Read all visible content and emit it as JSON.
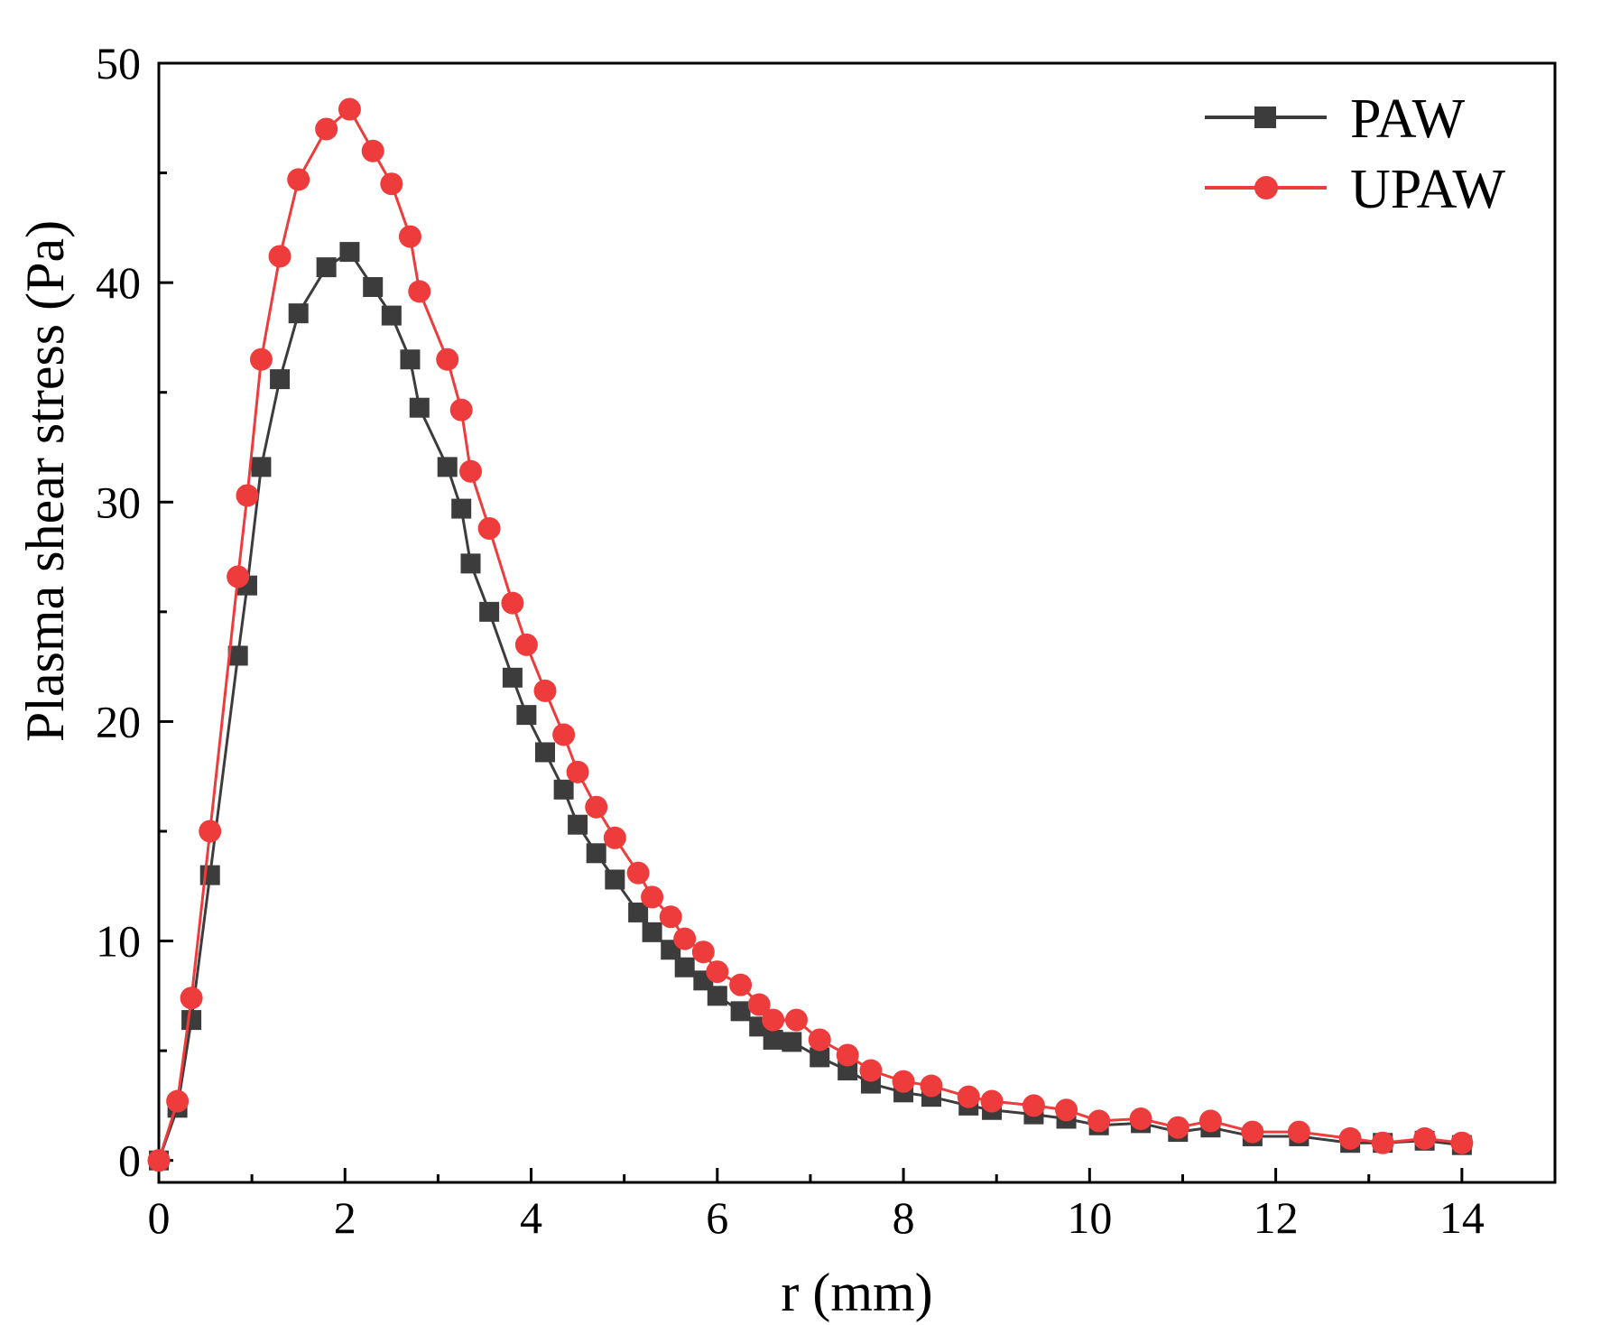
{
  "chart_data": {
    "type": "line",
    "title": "",
    "xlabel": "r (mm)",
    "ylabel": "Plasma shear stress (Pa)",
    "xlim": [
      0,
      15
    ],
    "ylim": [
      -1,
      50
    ],
    "xticks": [
      0,
      2,
      4,
      6,
      8,
      10,
      12,
      14
    ],
    "yticks": [
      0,
      10,
      20,
      30,
      40,
      50
    ],
    "xtick_labels": [
      "0",
      "2",
      "4",
      "6",
      "8",
      "10",
      "12",
      "14"
    ],
    "ytick_labels": [
      "0",
      "10",
      "20",
      "30",
      "40",
      "50"
    ],
    "legend_position": "top-right",
    "series": [
      {
        "name": "PAW",
        "color": "#3c3c3c",
        "marker": "square",
        "x": [
          0,
          0.2,
          0.35,
          0.55,
          0.85,
          0.95,
          1.1,
          1.3,
          1.5,
          1.8,
          2.05,
          2.3,
          2.5,
          2.7,
          2.8,
          3.1,
          3.25,
          3.35,
          3.55,
          3.8,
          3.95,
          4.15,
          4.35,
          4.5,
          4.7,
          4.9,
          5.15,
          5.3,
          5.5,
          5.65,
          5.85,
          6.0,
          6.25,
          6.45,
          6.6,
          6.8,
          7.1,
          7.4,
          7.65,
          8.0,
          8.3,
          8.7,
          8.95,
          9.4,
          9.75,
          10.1,
          10.55,
          10.95,
          11.3,
          11.75,
          12.25,
          12.8,
          13.15,
          13.6,
          14.0
        ],
        "y": [
          0,
          2.4,
          6.4,
          13,
          23,
          26.2,
          31.6,
          35.6,
          38.6,
          40.7,
          41.4,
          39.8,
          38.5,
          36.5,
          34.3,
          31.6,
          29.7,
          27.2,
          25,
          22,
          20.3,
          18.6,
          16.9,
          15.3,
          14,
          12.8,
          11.3,
          10.4,
          9.6,
          8.8,
          8.2,
          7.5,
          6.8,
          6.1,
          5.5,
          5.4,
          4.7,
          4.1,
          3.5,
          3.1,
          2.9,
          2.5,
          2.3,
          2.1,
          1.9,
          1.6,
          1.7,
          1.3,
          1.5,
          1.1,
          1.1,
          0.8,
          0.8,
          0.9,
          0.7
        ]
      },
      {
        "name": "UPAW",
        "color": "#ee3b3b",
        "marker": "circle",
        "x": [
          0,
          0.2,
          0.35,
          0.55,
          0.85,
          0.95,
          1.1,
          1.3,
          1.5,
          1.8,
          2.05,
          2.3,
          2.5,
          2.7,
          2.8,
          3.1,
          3.25,
          3.35,
          3.55,
          3.8,
          3.95,
          4.15,
          4.35,
          4.5,
          4.7,
          4.9,
          5.15,
          5.3,
          5.5,
          5.65,
          5.85,
          6.0,
          6.25,
          6.45,
          6.6,
          6.85,
          7.1,
          7.4,
          7.65,
          8.0,
          8.3,
          8.7,
          8.95,
          9.4,
          9.75,
          10.1,
          10.55,
          10.95,
          11.3,
          11.75,
          12.25,
          12.8,
          13.15,
          13.6,
          14.0
        ],
        "y": [
          0,
          2.7,
          7.4,
          15,
          26.6,
          30.3,
          36.5,
          41.2,
          44.7,
          47,
          47.9,
          46,
          44.5,
          42.1,
          39.6,
          36.5,
          34.2,
          31.4,
          28.8,
          25.4,
          23.5,
          21.4,
          19.4,
          17.7,
          16.1,
          14.7,
          13.1,
          12,
          11.1,
          10.1,
          9.5,
          8.6,
          8,
          7.1,
          6.4,
          6.4,
          5.5,
          4.8,
          4.1,
          3.6,
          3.4,
          2.9,
          2.7,
          2.5,
          2.3,
          1.8,
          1.9,
          1.5,
          1.8,
          1.3,
          1.3,
          1.0,
          0.8,
          1.0,
          0.8
        ]
      }
    ]
  }
}
